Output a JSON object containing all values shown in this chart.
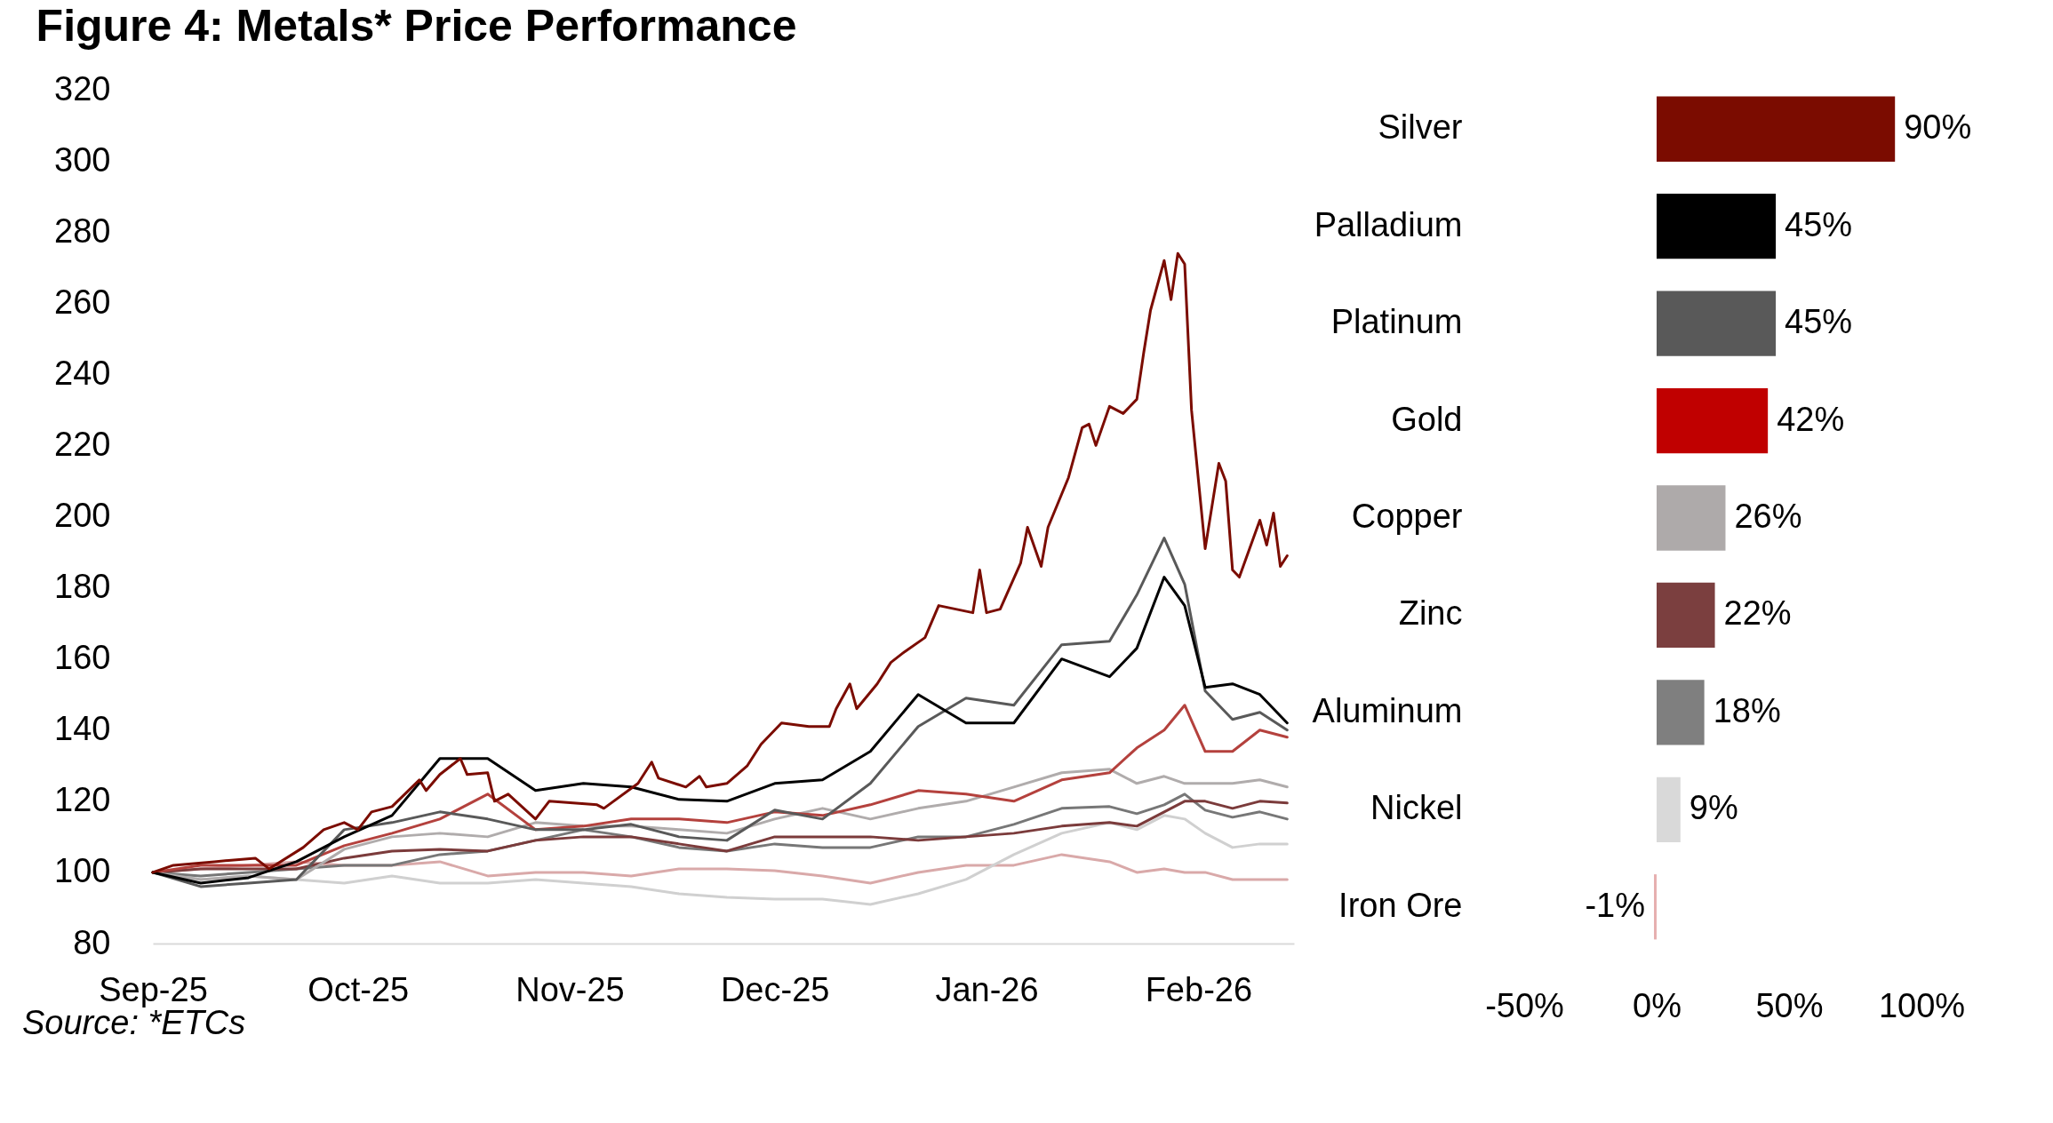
{
  "chart_data": [
    {
      "type": "line",
      "title": "Figure 4: Metals* Price Performance",
      "annotations": [
        "Source: *ETCs"
      ],
      "x": [
        "2025-09-01",
        "2025-09-08",
        "2025-09-15",
        "2025-09-22",
        "2025-09-29",
        "2025-10-06",
        "2025-10-13",
        "2025-10-20",
        "2025-10-27",
        "2025-11-03",
        "2025-11-10",
        "2025-11-17",
        "2025-11-24",
        "2025-12-01",
        "2025-12-08",
        "2025-12-15",
        "2025-12-22",
        "2025-12-29",
        "2026-01-05",
        "2026-01-12",
        "2026-01-19",
        "2026-01-23",
        "2026-01-27",
        "2026-01-30",
        "2026-02-02",
        "2026-02-06",
        "2026-02-10",
        "2026-02-14"
      ],
      "xlim": [
        "2025-09-01",
        "2026-02-15"
      ],
      "xticks": [
        {
          "value": "2025-09-01",
          "label": "Sep-25"
        },
        {
          "value": "2025-10-01",
          "label": "Oct-25"
        },
        {
          "value": "2025-11-01",
          "label": "Nov-25"
        },
        {
          "value": "2025-12-01",
          "label": "Dec-25"
        },
        {
          "value": "2026-01-01",
          "label": "Jan-26"
        },
        {
          "value": "2026-02-01",
          "label": "Feb-26"
        }
      ],
      "ylim": [
        80,
        320
      ],
      "yticks": [
        80,
        100,
        120,
        140,
        160,
        180,
        200,
        220,
        240,
        260,
        280,
        300,
        320
      ],
      "series": [
        {
          "color": "#d9a9a9",
          "values": [
            100,
            101,
            102,
            103,
            102,
            102,
            103,
            99,
            100,
            100,
            99,
            101,
            101,
            100.5,
            99,
            97,
            100,
            102,
            102,
            105,
            103,
            100,
            101,
            100,
            100,
            98,
            98,
            98
          ]
        },
        {
          "color": "#d0d0d0",
          "values": [
            100,
            98,
            99,
            98,
            97,
            99,
            97,
            97,
            98,
            97,
            96,
            94,
            93,
            92.5,
            92.5,
            91,
            94,
            98,
            105,
            111,
            114,
            112,
            116,
            115,
            111,
            107,
            108,
            108
          ]
        },
        {
          "color": "#777777",
          "values": [
            100,
            99,
            100,
            101,
            102,
            102,
            105,
            106,
            109,
            112,
            110,
            107,
            106,
            108,
            107,
            107,
            110,
            110,
            113.5,
            118,
            118.5,
            116.5,
            119,
            122,
            117.5,
            115.5,
            117,
            115
          ]
        },
        {
          "color": "#7b3b3b",
          "values": [
            100,
            101,
            101,
            101,
            104,
            106,
            106.5,
            106,
            109,
            110,
            110,
            108,
            106,
            110,
            110,
            110,
            109,
            110,
            111,
            113,
            114,
            113,
            117,
            120,
            120,
            118,
            120,
            119.5
          ]
        },
        {
          "color": "#b0acac",
          "values": [
            100,
            98,
            99,
            98,
            106.5,
            110,
            111,
            110,
            114,
            113,
            113,
            112,
            111,
            115,
            118,
            115,
            118,
            120,
            124,
            128,
            129,
            125,
            127,
            125,
            125,
            125,
            126,
            124
          ]
        },
        {
          "color": "#b4413d",
          "values": [
            100,
            102,
            102,
            102,
            107.5,
            111,
            115,
            122,
            112,
            113,
            115,
            115,
            114,
            117,
            116,
            119,
            123,
            122,
            120,
            126,
            128,
            135,
            140,
            147,
            134,
            134,
            140,
            138
          ]
        },
        {
          "color": "#595959",
          "values": [
            100,
            96,
            97,
            98,
            112,
            114,
            117,
            115,
            112,
            112,
            113.5,
            110,
            109,
            117.5,
            115,
            125,
            141,
            149,
            147,
            164,
            165,
            178,
            194,
            181,
            151,
            143,
            145,
            140
          ]
        },
        {
          "color": "#000000",
          "values": [
            100,
            97,
            98.5,
            103,
            110,
            116,
            132,
            132,
            123,
            125,
            124,
            120.5,
            120,
            125,
            126,
            134,
            150,
            142,
            142,
            160,
            155,
            163,
            183,
            175,
            152,
            153,
            150,
            142
          ]
        },
        {
          "color": "#7b0c00",
          "x": [
            "2025-09-01",
            "2025-09-04",
            "2025-09-10",
            "2025-09-16",
            "2025-09-18",
            "2025-09-23",
            "2025-09-26",
            "2025-09-29",
            "2025-10-01",
            "2025-10-03",
            "2025-10-06",
            "2025-10-10",
            "2025-10-11",
            "2025-10-13",
            "2025-10-16",
            "2025-10-17",
            "2025-10-20",
            "2025-10-21",
            "2025-10-23",
            "2025-10-27",
            "2025-10-29",
            "2025-11-05",
            "2025-11-06",
            "2025-11-11",
            "2025-11-13",
            "2025-11-14",
            "2025-11-18",
            "2025-11-20",
            "2025-11-21",
            "2025-11-24",
            "2025-11-27",
            "2025-11-29",
            "2025-12-02",
            "2025-12-06",
            "2025-12-09",
            "2025-12-10",
            "2025-12-12",
            "2025-12-13",
            "2025-12-16",
            "2025-12-18",
            "2025-12-20",
            "2025-12-23",
            "2025-12-25",
            "2025-12-30",
            "2025-12-31",
            "2026-01-01",
            "2026-01-03",
            "2026-01-06",
            "2026-01-07",
            "2026-01-09",
            "2026-01-10",
            "2026-01-13",
            "2026-01-15",
            "2026-01-16",
            "2026-01-17",
            "2026-01-19",
            "2026-01-21",
            "2026-01-23",
            "2026-01-24",
            "2026-01-25",
            "2026-01-27",
            "2026-01-28",
            "2026-01-29",
            "2026-01-30",
            "2026-01-31",
            "2026-02-02",
            "2026-02-04",
            "2026-02-05",
            "2026-02-06",
            "2026-02-07",
            "2026-02-10",
            "2026-02-11",
            "2026-02-12",
            "2026-02-13",
            "2026-02-14"
          ],
          "values": [
            100,
            102,
            103,
            104,
            101,
            107,
            112,
            114,
            112,
            117,
            118.5,
            126,
            123,
            127.5,
            132,
            127.5,
            128,
            120,
            122,
            115,
            120,
            119,
            118,
            125,
            131,
            126.5,
            124,
            127,
            124,
            125,
            130,
            136,
            142,
            141,
            141,
            146,
            153,
            146,
            153,
            159,
            162,
            166,
            175,
            173,
            185,
            173,
            174,
            187,
            197,
            186,
            197,
            211,
            225,
            226,
            220,
            231,
            229,
            233,
            246,
            258,
            272,
            261,
            274,
            271,
            230,
            191,
            215,
            210,
            185,
            183,
            199,
            192,
            201,
            186,
            189
          ]
        }
      ]
    },
    {
      "type": "bar",
      "orientation": "horizontal",
      "categories": [
        "Silver",
        "Palladium",
        "Platinum",
        "Gold",
        "Copper",
        "Zinc",
        "Aluminum",
        "Nickel",
        "Iron Ore"
      ],
      "values": [
        90,
        45,
        45,
        42,
        26,
        22,
        18,
        9,
        -1
      ],
      "colors": [
        "#7b0c00",
        "#000000",
        "#595959",
        "#c00000",
        "#aeaaaa",
        "#7b3f3f",
        "#7f7f7f",
        "#d9d9d9",
        "#e6b0b0"
      ],
      "value_labels": [
        "90%",
        "45%",
        "45%",
        "42%",
        "26%",
        "22%",
        "18%",
        "9%",
        "-1%"
      ],
      "xlim": [
        -50,
        100
      ],
      "xticks": [
        {
          "value": -50,
          "label": "-50%"
        },
        {
          "value": 0,
          "label": "0%"
        },
        {
          "value": 50,
          "label": "50%"
        },
        {
          "value": 100,
          "label": "100%"
        }
      ]
    }
  ]
}
